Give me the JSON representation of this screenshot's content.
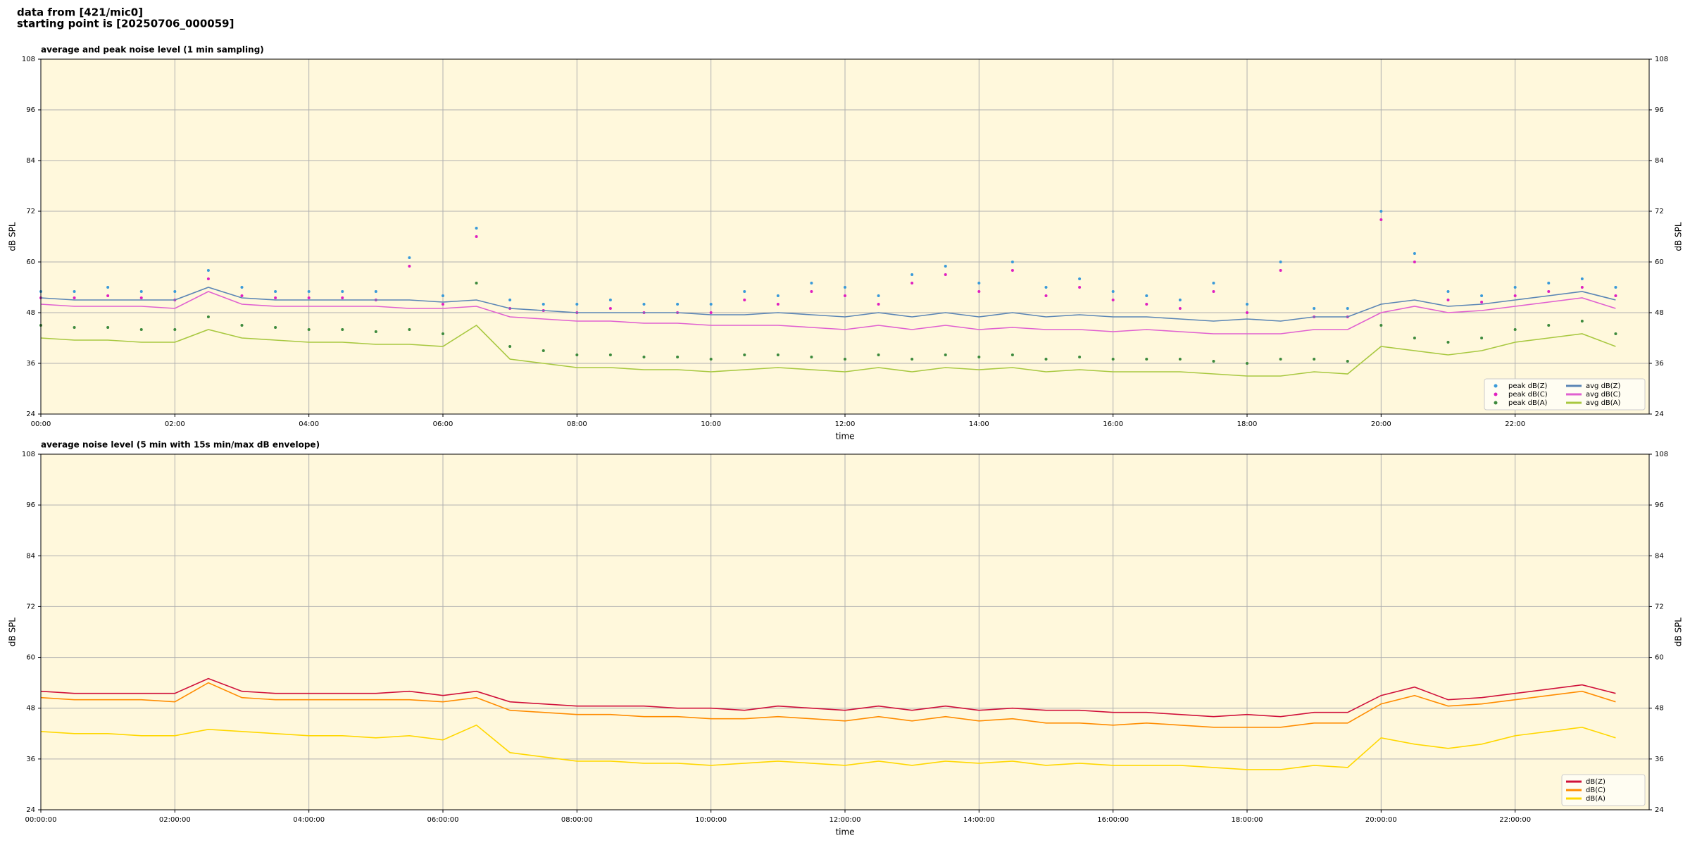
{
  "header": [
    "data from [421/mic0]",
    "starting point is [20250706_000059]"
  ],
  "chart_data": [
    {
      "type": "line",
      "title": "average and peak noise level (1 min sampling)",
      "x_label": "time",
      "y_label": "dB SPL",
      "background": "#fff8dc",
      "grid": true,
      "legend": "lower right",
      "legend_columns": 2,
      "xlim": [
        0,
        24
      ],
      "ylim": [
        24,
        108
      ],
      "yticks": [
        24,
        36,
        48,
        60,
        72,
        84,
        96,
        108
      ],
      "xticks": [
        {
          "value": 0,
          "label": "00:00"
        },
        {
          "value": 2,
          "label": "02:00"
        },
        {
          "value": 4,
          "label": "04:00"
        },
        {
          "value": 6,
          "label": "06:00"
        },
        {
          "value": 8,
          "label": "08:00"
        },
        {
          "value": 10,
          "label": "10:00"
        },
        {
          "value": 12,
          "label": "12:00"
        },
        {
          "value": 14,
          "label": "14:00"
        },
        {
          "value": 16,
          "label": "16:00"
        },
        {
          "value": 18,
          "label": "18:00"
        },
        {
          "value": 20,
          "label": "20:00"
        },
        {
          "value": 22,
          "label": "22:00"
        }
      ],
      "x": [
        0,
        0.5,
        1,
        1.5,
        2,
        2.5,
        3,
        3.5,
        4,
        4.5,
        5,
        5.5,
        6,
        6.5,
        7,
        7.5,
        8,
        8.5,
        9,
        9.5,
        10,
        10.5,
        11,
        11.5,
        12,
        12.5,
        13,
        13.5,
        14,
        14.5,
        15,
        15.5,
        16,
        16.5,
        17,
        17.5,
        18,
        18.5,
        19,
        19.5,
        20,
        20.5,
        21,
        21.5,
        22,
        22.5,
        23,
        23.5
      ],
      "series": [
        {
          "name": "peak dB(Z)",
          "style": "dot",
          "color": "#3a9ad9",
          "values": [
            53,
            53,
            54,
            53,
            53,
            58,
            54,
            53,
            53,
            53,
            53,
            61,
            52,
            68,
            51,
            50,
            50,
            51,
            50,
            50,
            50,
            53,
            52,
            55,
            54,
            52,
            57,
            59,
            55,
            60,
            54,
            56,
            53,
            52,
            51,
            55,
            50,
            60,
            49,
            49,
            72,
            62,
            53,
            52,
            54,
            55,
            56,
            54
          ]
        },
        {
          "name": "peak dB(C)",
          "style": "dot",
          "color": "#e020c0",
          "values": [
            51.5,
            51.5,
            52,
            51.5,
            51,
            56,
            52,
            51.5,
            51.5,
            51.5,
            51,
            59,
            50,
            66,
            49,
            48.5,
            48,
            49,
            48,
            48,
            48,
            51,
            50,
            53,
            52,
            50,
            55,
            57,
            53,
            58,
            52,
            54,
            51,
            50,
            49,
            53,
            48,
            58,
            47,
            47,
            70,
            60,
            51,
            50.5,
            52,
            53,
            54,
            52
          ]
        },
        {
          "name": "peak dB(A)",
          "style": "dot",
          "color": "#3d8a3d",
          "values": [
            45,
            44.5,
            44.5,
            44,
            44,
            47,
            45,
            44.5,
            44,
            44,
            43.5,
            44,
            43,
            55,
            40,
            39,
            38,
            38,
            37.5,
            37.5,
            37,
            38,
            38,
            37.5,
            37,
            38,
            37,
            38,
            37.5,
            38,
            37,
            37.5,
            37,
            37,
            37,
            36.5,
            36,
            37,
            37,
            36.5,
            45,
            42,
            41,
            42,
            44,
            45,
            46,
            43
          ]
        },
        {
          "name": "avg dB(Z)",
          "style": "line",
          "color": "#5a85b5",
          "values": [
            51.5,
            51,
            51,
            51,
            51,
            54,
            51.5,
            51,
            51,
            51,
            51,
            51,
            50.5,
            51,
            49,
            48.5,
            48,
            48,
            48,
            48,
            47.5,
            47.5,
            48,
            47.5,
            47,
            48,
            47,
            48,
            47,
            48,
            47,
            47.5,
            47,
            47,
            46.5,
            46,
            46.5,
            46,
            47,
            47,
            50,
            51,
            49.5,
            50,
            51,
            52,
            53,
            51
          ]
        },
        {
          "name": "avg dB(C)",
          "style": "line",
          "color": "#e060d0",
          "values": [
            50,
            49.5,
            49.5,
            49.5,
            49,
            53,
            50,
            49.5,
            49.5,
            49.5,
            49.5,
            49,
            49,
            49.5,
            47,
            46.5,
            46,
            46,
            45.5,
            45.5,
            45,
            45,
            45,
            44.5,
            44,
            45,
            44,
            45,
            44,
            44.5,
            44,
            44,
            43.5,
            44,
            43.5,
            43,
            43,
            43,
            44,
            44,
            48,
            49.5,
            48,
            48.5,
            49.5,
            50.5,
            51.5,
            49
          ]
        },
        {
          "name": "avg dB(A)",
          "style": "line",
          "color": "#a8c840",
          "values": [
            42,
            41.5,
            41.5,
            41,
            41,
            44,
            42,
            41.5,
            41,
            41,
            40.5,
            40.5,
            40,
            45,
            37,
            36,
            35,
            35,
            34.5,
            34.5,
            34,
            34.5,
            35,
            34.5,
            34,
            35,
            34,
            35,
            34.5,
            35,
            34,
            34.5,
            34,
            34,
            34,
            33.5,
            33,
            33,
            34,
            33.5,
            40,
            39,
            38,
            39,
            41,
            42,
            43,
            40
          ]
        }
      ]
    },
    {
      "type": "line",
      "title": "average noise level (5 min with 15s min/max dB envelope)",
      "x_label": "time",
      "y_label": "dB SPL",
      "background": "#fff8dc",
      "grid": true,
      "legend": "lower right",
      "legend_columns": 1,
      "xlim": [
        0,
        24
      ],
      "ylim": [
        24,
        108
      ],
      "yticks": [
        24,
        36,
        48,
        60,
        72,
        84,
        96,
        108
      ],
      "xticks": [
        {
          "value": 0,
          "label": "00:00:00"
        },
        {
          "value": 2,
          "label": "02:00:00"
        },
        {
          "value": 4,
          "label": "04:00:00"
        },
        {
          "value": 6,
          "label": "06:00:00"
        },
        {
          "value": 8,
          "label": "08:00:00"
        },
        {
          "value": 10,
          "label": "10:00:00"
        },
        {
          "value": 12,
          "label": "12:00:00"
        },
        {
          "value": 14,
          "label": "14:00:00"
        },
        {
          "value": 16,
          "label": "16:00:00"
        },
        {
          "value": 18,
          "label": "18:00:00"
        },
        {
          "value": 20,
          "label": "20:00:00"
        },
        {
          "value": 22,
          "label": "22:00:00"
        }
      ],
      "x": [
        0,
        0.5,
        1,
        1.5,
        2,
        2.5,
        3,
        3.5,
        4,
        4.5,
        5,
        5.5,
        6,
        6.5,
        7,
        7.5,
        8,
        8.5,
        9,
        9.5,
        10,
        10.5,
        11,
        11.5,
        12,
        12.5,
        13,
        13.5,
        14,
        14.5,
        15,
        15.5,
        16,
        16.5,
        17,
        17.5,
        18,
        18.5,
        19,
        19.5,
        20,
        20.5,
        21,
        21.5,
        22,
        22.5,
        23,
        23.5
      ],
      "series": [
        {
          "name": "dB(Z)",
          "style": "line",
          "color": "#d0103a",
          "values": [
            52,
            51.5,
            51.5,
            51.5,
            51.5,
            55,
            52,
            51.5,
            51.5,
            51.5,
            51.5,
            52,
            51,
            52,
            49.5,
            49,
            48.5,
            48.5,
            48.5,
            48,
            48,
            47.5,
            48.5,
            48,
            47.5,
            48.5,
            47.5,
            48.5,
            47.5,
            48,
            47.5,
            47.5,
            47,
            47,
            46.5,
            46,
            46.5,
            46,
            47,
            47,
            51,
            53,
            50,
            50.5,
            51.5,
            52.5,
            53.5,
            51.5
          ]
        },
        {
          "name": "dB(C)",
          "style": "line",
          "color": "#ff8c00",
          "values": [
            50.5,
            50,
            50,
            50,
            49.5,
            54,
            50.5,
            50,
            50,
            50,
            50,
            50,
            49.5,
            50.5,
            47.5,
            47,
            46.5,
            46.5,
            46,
            46,
            45.5,
            45.5,
            46,
            45.5,
            45,
            46,
            45,
            46,
            45,
            45.5,
            44.5,
            44.5,
            44,
            44.5,
            44,
            43.5,
            43.5,
            43.5,
            44.5,
            44.5,
            49,
            51,
            48.5,
            49,
            50,
            51,
            52,
            49.5
          ]
        },
        {
          "name": "dB(A)",
          "style": "line",
          "color": "#ffd700",
          "values": [
            42.5,
            42,
            42,
            41.5,
            41.5,
            43,
            42.5,
            42,
            41.5,
            41.5,
            41,
            41.5,
            40.5,
            44,
            37.5,
            36.5,
            35.5,
            35.5,
            35,
            35,
            34.5,
            35,
            35.5,
            35,
            34.5,
            35.5,
            34.5,
            35.5,
            35,
            35.5,
            34.5,
            35,
            34.5,
            34.5,
            34.5,
            34,
            33.5,
            33.5,
            34.5,
            34,
            41,
            39.5,
            38.5,
            39.5,
            41.5,
            42.5,
            43.5,
            41
          ]
        }
      ]
    }
  ]
}
